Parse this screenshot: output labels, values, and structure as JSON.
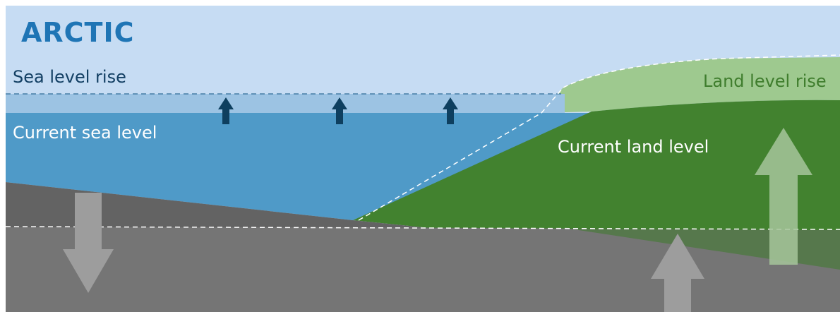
{
  "title": "ARCTIC",
  "labels": {
    "sea_level_rise": "Sea level rise",
    "current_sea_level": "Current sea level",
    "current_land_level": "Current land level",
    "land_level_rise": "Land level rise"
  },
  "colors": {
    "title": "#1f75b5",
    "sky": "#c6dcf3",
    "sea_rise_band": "#9cc3e3",
    "current_sea": "#4f9ac8",
    "land_rise": "#9ec98f",
    "current_land": "#42822f",
    "bedrock_upper": "#636363",
    "bedrock_lower": "#757575",
    "sea_arrow": "#0e3f5f",
    "ground_arrow": "#9d9d9d",
    "land_arrow": "#a6c59b",
    "dark_label": "#123f63",
    "light_label": "#ffffff",
    "land_rise_label": "#3f7d2d"
  },
  "icons": {
    "sea_rise_arrows": "arrow-up-icon",
    "subsidence_arrow": "arrow-down-icon",
    "ground_uplift_arrow": "arrow-up-icon",
    "land_uplift_arrow": "arrow-up-icon"
  }
}
